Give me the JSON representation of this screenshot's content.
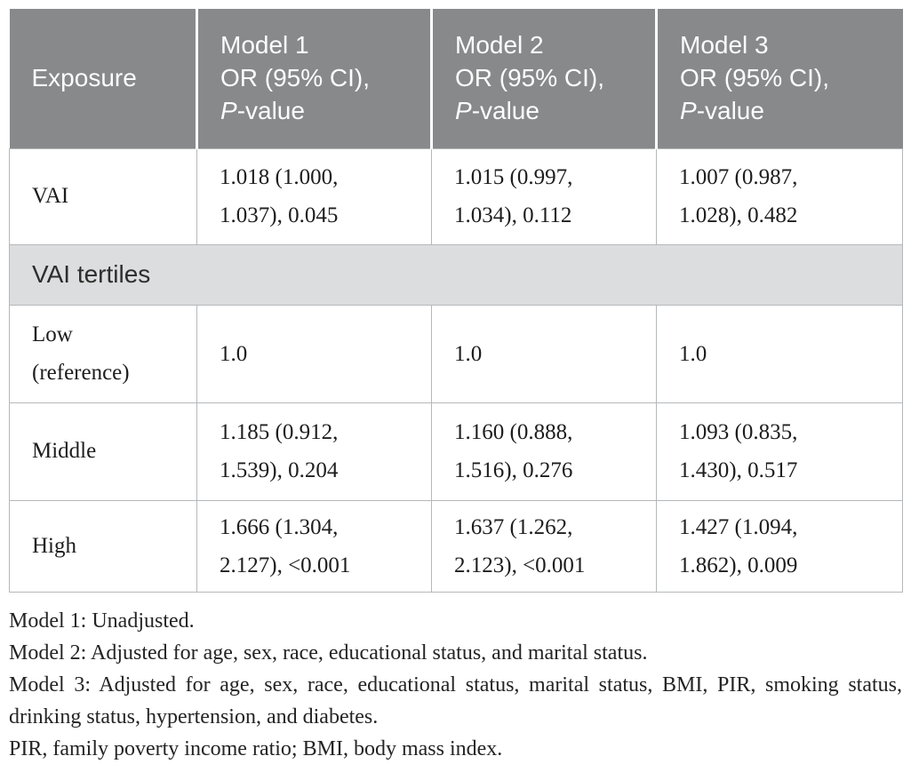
{
  "colors": {
    "header_bg": "#87898b",
    "header_text": "#fdfdfd",
    "section_bg": "#dcddde",
    "border": "#b5b8ba",
    "body_text": "#1d1d1d"
  },
  "table": {
    "header": {
      "exposure": "Exposure",
      "models": [
        {
          "name": "Model 1",
          "sub": "OR (95% CI),",
          "p": "P",
          "p_suffix": "-value"
        },
        {
          "name": "Model 2",
          "sub": "OR (95% CI),",
          "p": "P",
          "p_suffix": "-value"
        },
        {
          "name": "Model 3",
          "sub": "OR (95% CI),",
          "p": "P",
          "p_suffix": "-value"
        }
      ]
    },
    "rows": {
      "vai": {
        "label": "VAI",
        "m1": {
          "l1": "1.018 (1.000,",
          "l2": "1.037), 0.045"
        },
        "m2": {
          "l1": "1.015 (0.997,",
          "l2": "1.034), 0.112"
        },
        "m3": {
          "l1": "1.007 (0.987,",
          "l2": "1.028), 0.482"
        }
      },
      "section": {
        "label": "VAI tertiles"
      },
      "low": {
        "label_l1": "Low",
        "label_l2": "(reference)",
        "m1": "1.0",
        "m2": "1.0",
        "m3": "1.0"
      },
      "middle": {
        "label": "Middle",
        "m1": {
          "l1": "1.185 (0.912,",
          "l2": "1.539), 0.204"
        },
        "m2": {
          "l1": "1.160 (0.888,",
          "l2": "1.516), 0.276"
        },
        "m3": {
          "l1": "1.093 (0.835,",
          "l2": "1.430), 0.517"
        }
      },
      "high": {
        "label": "High",
        "m1": {
          "l1": "1.666 (1.304,",
          "l2": "2.127), <0.001"
        },
        "m2": {
          "l1": "1.637 (1.262,",
          "l2": "2.123), <0.001"
        },
        "m3": {
          "l1": "1.427 (1.094,",
          "l2": "1.862), 0.009"
        }
      }
    }
  },
  "footnotes": [
    "Model 1: Unadjusted.",
    "Model 2: Adjusted for age, sex, race, educational status, and marital status.",
    "Model 3: Adjusted for age, sex, race, educational status, marital status, BMI, PIR, smoking status, drinking status, hypertension, and diabetes.",
    "PIR, family poverty income ratio; BMI, body mass index."
  ]
}
